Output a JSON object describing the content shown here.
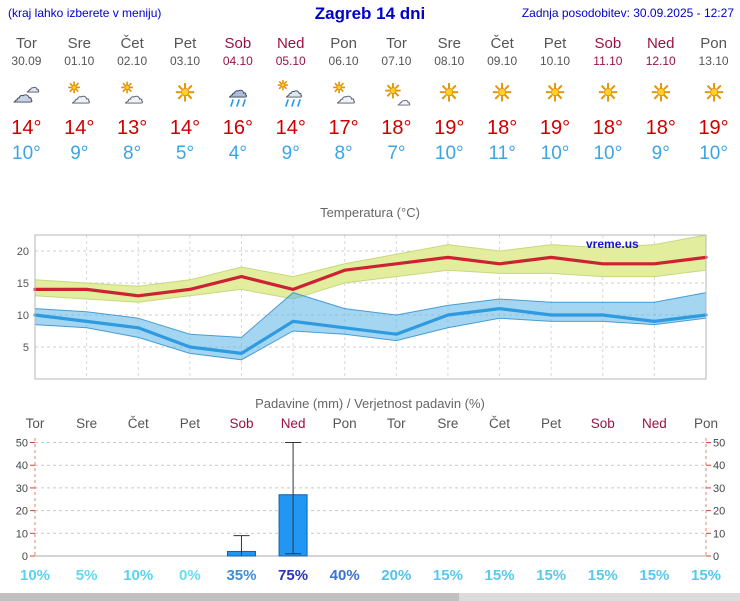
{
  "header": {
    "note": "(kraj lahko izberete v meniju)",
    "title": "Zagreb 14 dni",
    "updated": "Zadnja posodobitev: 30.09.2025 - 12:27"
  },
  "colors": {
    "accent": "#0000cc",
    "weekend": "#991144",
    "tmax": "#cc0000",
    "tmin": "#3da4e4",
    "bar": "#2196f3",
    "bar_edge": "#1061ae",
    "watermark": "#1414cc",
    "gridline": "#cfcfcf",
    "axis_tick_red": "#cc4433"
  },
  "forecast_days": [
    {
      "day": "Tor",
      "date": "30.09",
      "weekend": false,
      "icon": "cloudy",
      "tmax": "14°",
      "tmin": "10°"
    },
    {
      "day": "Sre",
      "date": "01.10",
      "weekend": false,
      "icon": "partly",
      "tmax": "14°",
      "tmin": "9°"
    },
    {
      "day": "Čet",
      "date": "02.10",
      "weekend": false,
      "icon": "partly",
      "tmax": "13°",
      "tmin": "8°"
    },
    {
      "day": "Pet",
      "date": "03.10",
      "weekend": false,
      "icon": "sunny",
      "tmax": "14°",
      "tmin": "5°"
    },
    {
      "day": "Sob",
      "date": "04.10",
      "weekend": true,
      "icon": "rain",
      "tmax": "16°",
      "tmin": "4°"
    },
    {
      "day": "Ned",
      "date": "05.10",
      "weekend": true,
      "icon": "rain-sun",
      "tmax": "14°",
      "tmin": "9°"
    },
    {
      "day": "Pon",
      "date": "06.10",
      "weekend": false,
      "icon": "partly",
      "tmax": "17°",
      "tmin": "8°"
    },
    {
      "day": "Tor",
      "date": "07.10",
      "weekend": false,
      "icon": "mostly-sunny",
      "tmax": "18°",
      "tmin": "7°"
    },
    {
      "day": "Sre",
      "date": "08.10",
      "weekend": false,
      "icon": "sunny",
      "tmax": "19°",
      "tmin": "10°"
    },
    {
      "day": "Čet",
      "date": "09.10",
      "weekend": false,
      "icon": "sunny",
      "tmax": "18°",
      "tmin": "11°"
    },
    {
      "day": "Pet",
      "date": "10.10",
      "weekend": false,
      "icon": "sunny",
      "tmax": "19°",
      "tmin": "10°"
    },
    {
      "day": "Sob",
      "date": "11.10",
      "weekend": true,
      "icon": "sunny",
      "tmax": "18°",
      "tmin": "10°"
    },
    {
      "day": "Ned",
      "date": "12.10",
      "weekend": true,
      "icon": "sunny",
      "tmax": "18°",
      "tmin": "9°"
    },
    {
      "day": "Pon",
      "date": "13.10",
      "weekend": false,
      "icon": "sunny",
      "tmax": "19°",
      "tmin": "10°"
    }
  ],
  "chart_data": [
    {
      "type": "line",
      "title": "Temperatura (°C)",
      "watermark": "vreme.us",
      "categories": [
        "Tor",
        "Sre",
        "Čet",
        "Pet",
        "Sob",
        "Ned",
        "Pon",
        "Tor",
        "Sre",
        "Čet",
        "Pet",
        "Sob",
        "Ned",
        "Pon"
      ],
      "yticks": [
        5,
        10,
        15,
        20
      ],
      "ylim": [
        0,
        22.5
      ],
      "grid": true,
      "series": [
        {
          "name": "tmax",
          "color": "#cc2233",
          "values": [
            14,
            14,
            13,
            14,
            16,
            14,
            17,
            18,
            19,
            18,
            19,
            18,
            18,
            19
          ]
        },
        {
          "name": "tmin",
          "color": "#2e9ae0",
          "values": [
            10,
            9,
            8,
            5,
            4,
            9,
            8,
            7,
            10,
            11,
            10,
            10,
            9,
            10
          ]
        }
      ],
      "bands": [
        {
          "name": "tmax-range-band",
          "color": "#e2ee9e",
          "edge": "#c2d272",
          "opacity": 1,
          "upper": [
            15.5,
            15,
            14.5,
            15.5,
            17.5,
            16,
            18,
            19.5,
            21,
            20,
            21,
            20.5,
            21,
            22.5
          ],
          "lower": [
            13,
            12.5,
            12,
            13,
            14,
            12.5,
            15,
            16,
            17,
            16.5,
            16.5,
            16,
            16,
            17
          ]
        },
        {
          "name": "tmin-range-band",
          "color": "#5ab4e8",
          "edge": "#2e8fd0",
          "opacity": 0.55,
          "upper": [
            11,
            10.5,
            9.5,
            7,
            6.5,
            13.5,
            11,
            10,
            11.5,
            12.5,
            12,
            12,
            12,
            13.5
          ],
          "lower": [
            8.5,
            8,
            6.5,
            4,
            3,
            7.5,
            7,
            6,
            8,
            9.5,
            9,
            9,
            8.5,
            9.5
          ]
        }
      ]
    },
    {
      "type": "bar",
      "title": "Padavine (mm) / Verjetnost padavin (%)",
      "categories": [
        "Tor",
        "Sre",
        "Čet",
        "Pet",
        "Sob",
        "Ned",
        "Pon",
        "Tor",
        "Sre",
        "Čet",
        "Pet",
        "Sob",
        "Ned",
        "Pon"
      ],
      "weekend_flags": [
        false,
        false,
        false,
        false,
        true,
        true,
        false,
        false,
        false,
        false,
        false,
        true,
        true,
        false
      ],
      "values": [
        0,
        0,
        0,
        0,
        2,
        27,
        0,
        0,
        0,
        0,
        0,
        0,
        0,
        0
      ],
      "whiskers": [
        {
          "index": 4,
          "low": 0,
          "high": 9
        },
        {
          "index": 5,
          "low": 1,
          "high": 50
        }
      ],
      "probabilities": [
        {
          "label": "10%",
          "color": "#5ad2ef"
        },
        {
          "label": "5%",
          "color": "#62d8f1"
        },
        {
          "label": "10%",
          "color": "#5ad2ef"
        },
        {
          "label": "0%",
          "color": "#68dcf3"
        },
        {
          "label": "35%",
          "color": "#3f8ed2"
        },
        {
          "label": "75%",
          "color": "#2634b8"
        },
        {
          "label": "40%",
          "color": "#3a74cc"
        },
        {
          "label": "20%",
          "color": "#52c2e8"
        },
        {
          "label": "15%",
          "color": "#57caec"
        },
        {
          "label": "15%",
          "color": "#57caec"
        },
        {
          "label": "15%",
          "color": "#57caec"
        },
        {
          "label": "15%",
          "color": "#57caec"
        },
        {
          "label": "15%",
          "color": "#57caec"
        },
        {
          "label": "15%",
          "color": "#57caec"
        }
      ],
      "yticks": [
        0,
        10,
        20,
        30,
        40,
        50
      ],
      "ylim": [
        0,
        52
      ]
    }
  ]
}
